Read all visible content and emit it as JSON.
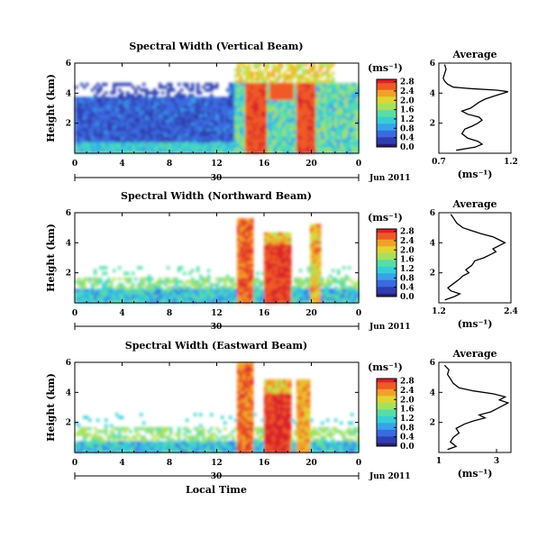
{
  "figure": {
    "x_axis_label": "Local Time",
    "colors": {
      "colormap": [
        "#2b1f6e",
        "#2f3fb0",
        "#3a6ae0",
        "#38a2ea",
        "#36cfd5",
        "#58dda6",
        "#a6e15d",
        "#e0d534",
        "#f2a12a",
        "#ef5a26",
        "#d9232c"
      ]
    }
  },
  "chart_data": [
    {
      "type": "heatmap",
      "title": "Spectral Width (Vertical Beam)",
      "ylabel": "Height (km)",
      "x_ticks": [
        "0",
        "4",
        "8",
        "12",
        "16",
        "20",
        "0"
      ],
      "xlim": [
        0,
        24
      ],
      "y_ticks": [
        "2",
        "4",
        "6"
      ],
      "ylim": [
        0,
        6
      ],
      "date_axis": {
        "day_label": "30",
        "month_label": "Jun 2011"
      },
      "colorbar": {
        "unit": "(ms⁻¹)",
        "ticks": [
          "0.0",
          "0.4",
          "0.8",
          "1.2",
          "1.6",
          "2.0",
          "2.4",
          "2.8"
        ],
        "range": [
          0,
          2.9
        ]
      },
      "profile": {
        "title": "Average",
        "xlabel": "(ms⁻¹)",
        "x_ticks": [
          "0.7",
          "1.2"
        ],
        "xlim": [
          0.7,
          1.2
        ],
        "y_ticks": [
          "2",
          "4",
          "6"
        ],
        "ylim": [
          0,
          6
        ],
        "points": [
          [
            0.82,
            0.2
          ],
          [
            0.95,
            0.4
          ],
          [
            1.0,
            0.6
          ],
          [
            0.97,
            0.8
          ],
          [
            0.9,
            1.0
          ],
          [
            0.86,
            1.3
          ],
          [
            0.88,
            1.6
          ],
          [
            0.93,
            1.8
          ],
          [
            0.97,
            2.0
          ],
          [
            1.0,
            2.2
          ],
          [
            0.98,
            2.4
          ],
          [
            0.9,
            2.6
          ],
          [
            0.86,
            2.8
          ],
          [
            0.92,
            3.0
          ],
          [
            0.95,
            3.2
          ],
          [
            0.98,
            3.4
          ],
          [
            1.02,
            3.6
          ],
          [
            1.08,
            3.8
          ],
          [
            1.15,
            4.0
          ],
          [
            1.18,
            4.1
          ],
          [
            1.1,
            4.2
          ],
          [
            0.92,
            4.3
          ],
          [
            0.8,
            4.4
          ],
          [
            0.76,
            4.6
          ],
          [
            0.74,
            4.8
          ],
          [
            0.73,
            5.0
          ],
          [
            0.74,
            5.3
          ],
          [
            0.75,
            5.6
          ],
          [
            0.74,
            5.9
          ]
        ]
      }
    },
    {
      "type": "heatmap",
      "title": "Spectral Width (Northward Beam)",
      "ylabel": "Height (km)",
      "x_ticks": [
        "0",
        "4",
        "8",
        "12",
        "16",
        "20",
        "0"
      ],
      "xlim": [
        0,
        24
      ],
      "y_ticks": [
        "2",
        "4",
        "6"
      ],
      "ylim": [
        0,
        6
      ],
      "date_axis": {
        "day_label": "30",
        "month_label": "Jun 2011"
      },
      "colorbar": {
        "unit": "(ms⁻¹)",
        "ticks": [
          "0.0",
          "0.4",
          "0.8",
          "1.2",
          "1.6",
          "2.0",
          "2.4",
          "2.8"
        ],
        "range": [
          0,
          2.9
        ]
      },
      "profile": {
        "title": "Average",
        "xlabel": "(ms⁻¹)",
        "x_ticks": [
          "1.2",
          "2.4"
        ],
        "xlim": [
          1.2,
          2.4
        ],
        "y_ticks": [
          "2",
          "4",
          "6"
        ],
        "ylim": [
          0,
          6
        ],
        "points": [
          [
            1.3,
            0.2
          ],
          [
            1.45,
            0.4
          ],
          [
            1.55,
            0.6
          ],
          [
            1.4,
            0.8
          ],
          [
            1.35,
            1.0
          ],
          [
            1.45,
            1.3
          ],
          [
            1.55,
            1.6
          ],
          [
            1.6,
            1.8
          ],
          [
            1.7,
            2.0
          ],
          [
            1.65,
            2.2
          ],
          [
            1.75,
            2.5
          ],
          [
            1.8,
            2.8
          ],
          [
            1.95,
            3.0
          ],
          [
            2.05,
            3.2
          ],
          [
            2.15,
            3.4
          ],
          [
            2.1,
            3.6
          ],
          [
            2.2,
            3.8
          ],
          [
            2.3,
            4.0
          ],
          [
            2.2,
            4.2
          ],
          [
            2.1,
            4.4
          ],
          [
            1.9,
            4.6
          ],
          [
            1.75,
            4.8
          ],
          [
            1.6,
            5.0
          ],
          [
            1.5,
            5.3
          ],
          [
            1.45,
            5.6
          ],
          [
            1.4,
            5.9
          ]
        ]
      }
    },
    {
      "type": "heatmap",
      "title": "Spectral Width (Eastward Beam)",
      "ylabel": "Height (km)",
      "x_ticks": [
        "0",
        "4",
        "8",
        "12",
        "16",
        "20",
        "0"
      ],
      "xlim": [
        0,
        24
      ],
      "y_ticks": [
        "2",
        "4",
        "6"
      ],
      "ylim": [
        0,
        6
      ],
      "date_axis": {
        "day_label": "30",
        "month_label": "Jun 2011"
      },
      "colorbar": {
        "unit": "(ms⁻¹)",
        "ticks": [
          "0.0",
          "0.4",
          "0.8",
          "1.2",
          "1.6",
          "2.0",
          "2.4",
          "2.8"
        ],
        "range": [
          0,
          2.9
        ]
      },
      "profile": {
        "title": "Average",
        "xlabel": "(ms⁻¹)",
        "x_ticks": [
          "1",
          "3"
        ],
        "xlim": [
          1,
          3.5
        ],
        "y_ticks": [
          "2",
          "4",
          "6"
        ],
        "ylim": [
          0,
          6
        ],
        "points": [
          [
            1.3,
            0.2
          ],
          [
            1.6,
            0.4
          ],
          [
            1.4,
            0.7
          ],
          [
            1.5,
            1.0
          ],
          [
            1.7,
            1.3
          ],
          [
            1.6,
            1.6
          ],
          [
            1.9,
            1.9
          ],
          [
            2.2,
            2.1
          ],
          [
            2.6,
            2.3
          ],
          [
            2.4,
            2.5
          ],
          [
            2.8,
            2.7
          ],
          [
            3.0,
            2.9
          ],
          [
            3.2,
            3.1
          ],
          [
            3.4,
            3.3
          ],
          [
            3.1,
            3.5
          ],
          [
            3.3,
            3.7
          ],
          [
            2.9,
            3.9
          ],
          [
            2.2,
            4.1
          ],
          [
            1.7,
            4.3
          ],
          [
            1.5,
            4.6
          ],
          [
            1.4,
            4.9
          ],
          [
            1.3,
            5.2
          ],
          [
            1.35,
            5.5
          ],
          [
            1.2,
            5.8
          ]
        ]
      }
    }
  ]
}
